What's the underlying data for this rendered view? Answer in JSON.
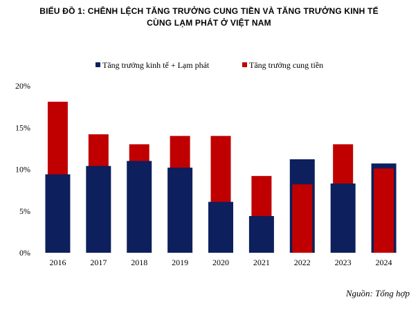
{
  "title_line1": "BIỂU ĐỒ 1: CHÊNH  LỆCH TĂNG TRƯỞNG CUNG TIỀN VÀ TĂNG TRƯỞNG KINH TẾ",
  "title_line2": "CÙNG  LẠM PHÁT Ở VIỆT NAM",
  "source": "Nguồn: Tổng hợp",
  "chart_data": {
    "type": "bar",
    "categories": [
      "2016",
      "2017",
      "2018",
      "2019",
      "2020",
      "2021",
      "2022",
      "2023",
      "2024"
    ],
    "series": [
      {
        "name": "Tăng trưởng kinh tế + Lạm phát",
        "color": "#0d1f5c",
        "values": [
          9.4,
          10.4,
          11.0,
          10.2,
          6.1,
          4.4,
          11.2,
          8.3,
          10.7
        ]
      },
      {
        "name": "Tăng trưởng cung tiền",
        "color": "#c00000",
        "values": [
          18.1,
          14.2,
          13.0,
          14.0,
          14.0,
          9.2,
          8.2,
          13.0,
          10.1
        ]
      }
    ],
    "y_ticks": [
      "0%",
      "5%",
      "10%",
      "15%",
      "20%"
    ],
    "ylim": [
      0,
      20
    ],
    "legend_position": "top",
    "grid": false,
    "overlap": true
  }
}
